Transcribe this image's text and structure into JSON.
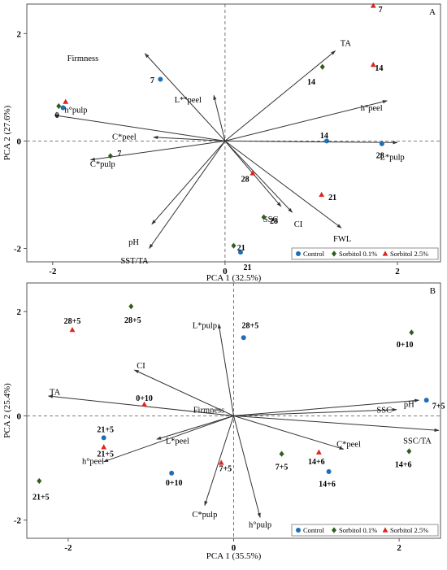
{
  "colors": {
    "Control": "#1f6fb5",
    "Sorbitol 0.1%": "#2e5e1e",
    "Sorbitol 2.5%": "#e0231c",
    "vector": "#333333"
  },
  "chart_data": [
    {
      "type": "scatter",
      "panel": "A",
      "xlabel": "PCA 1 (32.5%)",
      "ylabel": "PCA 2 (27.6%)",
      "xlim": [
        -2.3,
        2.5
      ],
      "ylim": [
        -2.25,
        2.55
      ],
      "xticks": [
        {
          "v": -2,
          "t": "-2"
        },
        {
          "v": 0,
          "t": "0"
        },
        {
          "v": 2,
          "t": "2"
        }
      ],
      "yticks": [
        {
          "v": 2,
          "t": "2"
        },
        {
          "v": 0,
          "t": "0"
        },
        {
          "v": -2,
          "t": "-2"
        }
      ],
      "legend": [
        "Control",
        "Sorbitol 0.1%",
        "Sorbitol 2.5%"
      ],
      "vectors": [
        {
          "name": "Firmness",
          "x": -0.93,
          "y": 1.63,
          "lx": -1.65,
          "ly": 1.55
        },
        {
          "name": "L*°peel",
          "x": -0.13,
          "y": 0.85,
          "lx": -0.43,
          "ly": 0.78
        },
        {
          "name": "TA",
          "x": 1.28,
          "y": 1.68,
          "lx": 1.4,
          "ly": 1.83
        },
        {
          "name": "h°peel",
          "x": 1.88,
          "y": 0.75,
          "lx": 1.7,
          "ly": 0.63
        },
        {
          "name": "h°pulp",
          "x": -1.98,
          "y": 0.48,
          "lx": -1.73,
          "ly": 0.59
        },
        {
          "name": "C*peel",
          "x": -0.83,
          "y": 0.07,
          "lx": -1.17,
          "ly": 0.09
        },
        {
          "name": "C*pulp",
          "x": -1.56,
          "y": -0.35,
          "lx": -1.42,
          "ly": -0.42
        },
        {
          "name": "L*pulp",
          "x": 2.0,
          "y": -0.03,
          "lx": 1.94,
          "ly": -0.29
        },
        {
          "name": "SSC",
          "x": 0.65,
          "y": -1.22,
          "lx": 0.53,
          "ly": -1.45
        },
        {
          "name": "CI",
          "x": 0.78,
          "y": -1.33,
          "lx": 0.85,
          "ly": -1.54
        },
        {
          "name": "FWL",
          "x": 1.35,
          "y": -1.62,
          "lx": 1.36,
          "ly": -1.81
        },
        {
          "name": "pH",
          "x": -0.85,
          "y": -1.55,
          "lx": -1.06,
          "ly": -1.87
        },
        {
          "name": "SST/TA",
          "x": -0.88,
          "y": -2.0,
          "lx": -1.05,
          "ly": -2.22
        }
      ],
      "points": [
        {
          "g": "Control",
          "x": -0.75,
          "y": 1.15,
          "label": "7",
          "lx": -0.82,
          "ly": 1.14,
          "anchor": "end"
        },
        {
          "g": "Control",
          "x": -1.88,
          "y": 0.62,
          "label": "0",
          "lx": -1.95,
          "ly": 0.49,
          "anchor": "middle"
        },
        {
          "g": "Control",
          "x": 1.18,
          "y": 0.0,
          "label": "14",
          "lx": 1.15,
          "ly": 0.11,
          "anchor": "middle"
        },
        {
          "g": "Control",
          "x": 1.82,
          "y": -0.05,
          "label": "28",
          "lx": 1.8,
          "ly": -0.26,
          "anchor": "middle"
        },
        {
          "g": "Control",
          "x": 0.18,
          "y": -2.07,
          "label": "21",
          "lx": 0.26,
          "ly": -2.34,
          "anchor": "middle"
        },
        {
          "g": "Sorbitol 0.1%",
          "x": -1.93,
          "y": 0.65,
          "label": "",
          "lx": 0,
          "ly": 0,
          "anchor": "middle"
        },
        {
          "g": "Sorbitol 0.1%",
          "x": -1.33,
          "y": -0.28,
          "label": "7",
          "lx": -1.25,
          "ly": -0.22,
          "anchor": "start"
        },
        {
          "g": "Sorbitol 0.1%",
          "x": 1.13,
          "y": 1.38,
          "label": "14",
          "lx": 1.0,
          "ly": 1.11,
          "anchor": "middle"
        },
        {
          "g": "Sorbitol 0.1%",
          "x": 0.45,
          "y": -1.42,
          "label": "28",
          "lx": 0.52,
          "ly": -1.48,
          "anchor": "start"
        },
        {
          "g": "Sorbitol 0.1%",
          "x": 0.1,
          "y": -1.95,
          "label": "21",
          "lx": 0.14,
          "ly": -1.98,
          "anchor": "start"
        },
        {
          "g": "Sorbitol 2.5%",
          "x": -1.85,
          "y": 0.73,
          "label": "",
          "lx": 0,
          "ly": 0,
          "anchor": "middle"
        },
        {
          "g": "Sorbitol 2.5%",
          "x": 1.72,
          "y": 2.52,
          "label": "7",
          "lx": 1.78,
          "ly": 2.46,
          "anchor": "start"
        },
        {
          "g": "Sorbitol 2.5%",
          "x": 1.72,
          "y": 1.42,
          "label": "14",
          "lx": 1.74,
          "ly": 1.37,
          "anchor": "start"
        },
        {
          "g": "Sorbitol 2.5%",
          "x": 0.32,
          "y": -0.6,
          "label": "28",
          "lx": 0.28,
          "ly": -0.7,
          "anchor": "end"
        },
        {
          "g": "Sorbitol 2.5%",
          "x": 1.12,
          "y": -1.0,
          "label": "21",
          "lx": 1.2,
          "ly": -1.04,
          "anchor": "start"
        }
      ]
    },
    {
      "type": "scatter",
      "panel": "B",
      "xlabel": "PCA 1 (35.5%)",
      "ylabel": "PCA 2 (25.4%)",
      "xlim": [
        -2.5,
        2.5
      ],
      "ylim": [
        -2.35,
        2.55
      ],
      "xticks": [
        {
          "v": -2,
          "t": "-2"
        },
        {
          "v": 0,
          "t": "0"
        },
        {
          "v": 2,
          "t": "2"
        }
      ],
      "yticks": [
        {
          "v": 2,
          "t": "2"
        },
        {
          "v": 0,
          "t": "0"
        },
        {
          "v": -2,
          "t": "-2"
        }
      ],
      "legend": [
        "Control",
        "Sorbitol 0.1%",
        "Sorbitol 2.5%"
      ],
      "vectors": [
        {
          "name": "L*pulp",
          "x": -0.18,
          "y": 1.76,
          "lx": -0.35,
          "ly": 1.75
        },
        {
          "name": "CI",
          "x": -1.2,
          "y": 0.88,
          "lx": -1.12,
          "ly": 0.97
        },
        {
          "name": "TA",
          "x": -2.24,
          "y": 0.38,
          "lx": -2.16,
          "ly": 0.47
        },
        {
          "name": "Firmness",
          "x": 0.0,
          "y": 0.0,
          "lx": -0.3,
          "ly": 0.12
        },
        {
          "name": "pH",
          "x": 2.24,
          "y": 0.3,
          "lx": 2.12,
          "ly": 0.23
        },
        {
          "name": "SSC",
          "x": 1.97,
          "y": 0.12,
          "lx": 1.82,
          "ly": 0.12
        },
        {
          "name": "SSC/TA",
          "x": 2.48,
          "y": -0.28,
          "lx": 2.22,
          "ly": -0.47
        },
        {
          "name": "L*peel",
          "x": -0.93,
          "y": -0.45,
          "lx": -0.68,
          "ly": -0.47
        },
        {
          "name": "h°peel",
          "x": -1.57,
          "y": -0.88,
          "lx": -1.7,
          "ly": -0.86
        },
        {
          "name": "C*peel",
          "x": 1.33,
          "y": -0.64,
          "lx": 1.39,
          "ly": -0.53
        },
        {
          "name": "C*pulp",
          "x": -0.35,
          "y": -1.72,
          "lx": -0.35,
          "ly": -1.88
        },
        {
          "name": "h°pulp",
          "x": 0.32,
          "y": -1.95,
          "lx": 0.32,
          "ly": -2.08
        }
      ],
      "points": [
        {
          "g": "Control",
          "x": 0.12,
          "y": 1.5,
          "label": "28+5",
          "lx": 0.2,
          "ly": 1.75,
          "anchor": "middle"
        },
        {
          "g": "Control",
          "x": 2.33,
          "y": 0.3,
          "label": "7+5",
          "lx": 2.4,
          "ly": 0.2,
          "anchor": "start"
        },
        {
          "g": "Control",
          "x": -1.57,
          "y": -0.42,
          "label": "21+5",
          "lx": -1.55,
          "ly": -0.25,
          "anchor": "middle"
        },
        {
          "g": "Control",
          "x": -0.75,
          "y": -1.1,
          "label": "0+10",
          "lx": -0.72,
          "ly": -1.27,
          "anchor": "middle"
        },
        {
          "g": "Control",
          "x": 1.15,
          "y": -1.07,
          "label": "14+6",
          "lx": 1.13,
          "ly": -1.3,
          "anchor": "middle"
        },
        {
          "g": "Sorbitol 0.1%",
          "x": -1.24,
          "y": 2.1,
          "label": "28+5",
          "lx": -1.22,
          "ly": 1.85,
          "anchor": "middle"
        },
        {
          "g": "Sorbitol 0.1%",
          "x": 2.15,
          "y": 1.6,
          "label": "0+10",
          "lx": 2.07,
          "ly": 1.38,
          "anchor": "middle"
        },
        {
          "g": "Sorbitol 0.1%",
          "x": 0.58,
          "y": -0.73,
          "label": "7+5",
          "lx": 0.58,
          "ly": -0.97,
          "anchor": "middle"
        },
        {
          "g": "Sorbitol 0.1%",
          "x": 2.12,
          "y": -0.68,
          "label": "14+6",
          "lx": 2.05,
          "ly": -0.92,
          "anchor": "middle"
        },
        {
          "g": "Sorbitol 0.1%",
          "x": -2.35,
          "y": -1.25,
          "label": "21+5",
          "lx": -2.33,
          "ly": -1.55,
          "anchor": "middle"
        },
        {
          "g": "Sorbitol 2.5%",
          "x": -1.95,
          "y": 1.65,
          "label": "28+5",
          "lx": -1.95,
          "ly": 1.83,
          "anchor": "middle"
        },
        {
          "g": "Sorbitol 2.5%",
          "x": -1.08,
          "y": 0.22,
          "label": "0+10",
          "lx": -1.08,
          "ly": 0.35,
          "anchor": "middle"
        },
        {
          "g": "Sorbitol 2.5%",
          "x": -1.57,
          "y": -0.6,
          "label": "21+5",
          "lx": -1.55,
          "ly": -0.72,
          "anchor": "middle"
        },
        {
          "g": "Sorbitol 2.5%",
          "x": -0.15,
          "y": -0.9,
          "label": "7+5",
          "lx": -0.1,
          "ly": -1.0,
          "anchor": "middle"
        },
        {
          "g": "Sorbitol 2.5%",
          "x": 1.03,
          "y": -0.7,
          "label": "14+6",
          "lx": 1.0,
          "ly": -0.87,
          "anchor": "middle"
        }
      ]
    }
  ]
}
